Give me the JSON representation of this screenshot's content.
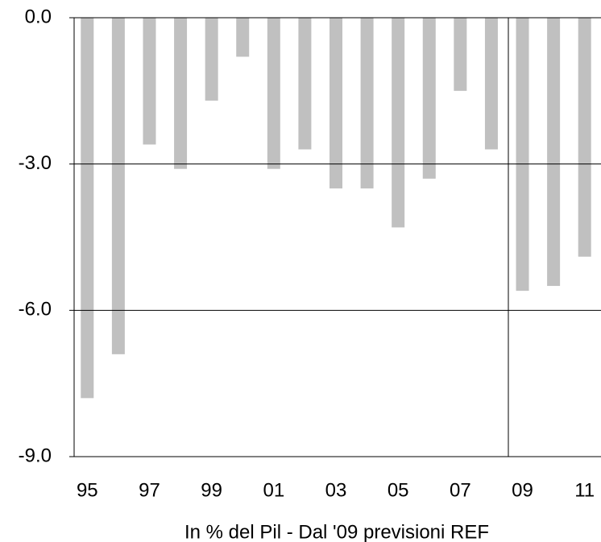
{
  "chart_data": {
    "type": "bar",
    "xlabel": "In % del Pil - Dal '09 previsioni REF",
    "categories": [
      "95",
      null,
      "97",
      null,
      "99",
      null,
      "01",
      null,
      "03",
      null,
      "05",
      null,
      "07",
      null,
      "09",
      null,
      "11"
    ],
    "values": [
      -7.8,
      -6.9,
      -2.6,
      -3.1,
      -1.7,
      -0.8,
      -3.1,
      -2.7,
      -3.5,
      -3.5,
      -4.3,
      -3.3,
      -1.5,
      -2.7,
      -5.6,
      -5.5,
      -4.9
    ],
    "color": "#c0c0c0",
    "ylim": [
      -9,
      0
    ],
    "yticks": [
      {
        "value": 0,
        "label": "0.0"
      },
      {
        "value": -3,
        "label": "-3.0"
      },
      {
        "value": -6,
        "label": "-6.0"
      },
      {
        "value": -9,
        "label": "-9.0"
      }
    ],
    "grid": true
  }
}
